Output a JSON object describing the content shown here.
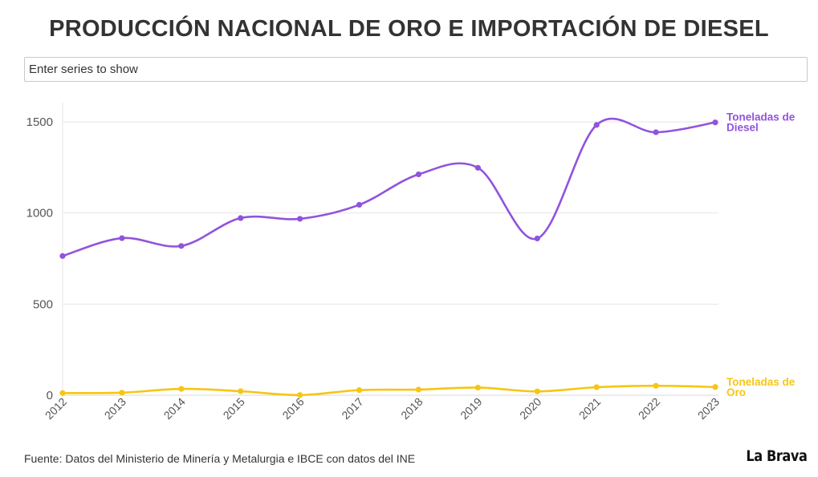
{
  "title": "PRODUCCIÓN NACIONAL DE ORO E IMPORTACIÓN DE DIESEL",
  "search": {
    "placeholder": "Enter series to show"
  },
  "footer": {
    "source": "Fuente: Datos del Ministerio de Minería y Metalurgia e IBCE con datos del INE"
  },
  "logo": {
    "text": "La Brava"
  },
  "chart_data": {
    "type": "line",
    "title": "PRODUCCIÓN NACIONAL DE ORO E IMPORTACIÓN DE DIESEL",
    "xlabel": "",
    "ylabel": "",
    "categories": [
      "2012",
      "2013",
      "2014",
      "2015",
      "2016",
      "2017",
      "2018",
      "2019",
      "2020",
      "2021",
      "2022",
      "2023"
    ],
    "ylim": [
      0,
      1600
    ],
    "yticks": [
      0,
      500,
      1000,
      1500
    ],
    "grid": true,
    "legend": "inline-right",
    "series": [
      {
        "name": "Toneladas de Diesel",
        "label_lines": [
          "Toneladas de",
          "Diesel"
        ],
        "color": "#9153dd",
        "values": [
          764,
          862,
          819,
          972,
          968,
          1045,
          1212,
          1248,
          860,
          1483,
          1443,
          1497
        ]
      },
      {
        "name": "Toneladas de Oro",
        "label_lines": [
          "Toneladas de",
          "Oro"
        ],
        "color": "#f7c514",
        "values": [
          12,
          14,
          35,
          22,
          1,
          28,
          31,
          42,
          21,
          44,
          52,
          45
        ]
      }
    ]
  }
}
